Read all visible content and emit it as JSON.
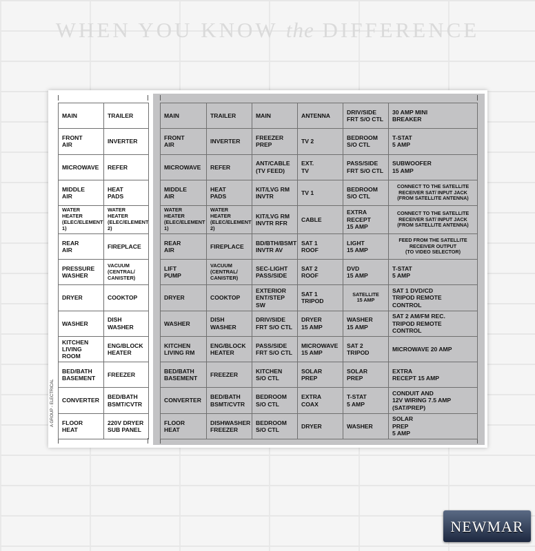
{
  "banner": {
    "line_a": "WHEN YOU KNOW",
    "line_the": "the",
    "line_b": "DIFFERENCE"
  },
  "side_label": "A GROUP - ELECTRICAL",
  "brand": "NEWMAR",
  "left_table": [
    [
      "MAIN",
      "TRAILER"
    ],
    [
      "FRONT\nAIR",
      "INVERTER"
    ],
    [
      "MICROWAVE",
      "REFER"
    ],
    [
      "MIDDLE\nAIR",
      "HEAT\nPADS"
    ],
    [
      "WATER\nHEATER\n(ELEC/ELEMENT 1)",
      "WATER\nHEATER\n(ELEC/ELEMENT 2)"
    ],
    [
      "REAR\nAIR",
      "FIREPLACE"
    ],
    [
      "PRESSURE\nWASHER",
      "VACUUM\n(CENTRAL/\nCANISTER)"
    ],
    [
      "DRYER",
      "COOKTOP"
    ],
    [
      "WASHER",
      "DISH\nWASHER"
    ],
    [
      "KITCHEN\nLIVING ROOM",
      "ENG/BLOCK\nHEATER"
    ],
    [
      "BED/BATH\nBASEMENT",
      "FREEZER"
    ],
    [
      "CONVERTER",
      "BED/BATH\nBSMT/CVTR"
    ],
    [
      "FLOOR\nHEAT",
      "220V DRYER\nSUB PANEL"
    ]
  ],
  "right_table": [
    [
      "MAIN",
      "TRAILER",
      "MAIN",
      "ANTENNA",
      "DRIV/SIDE\nFRT S/O CTL",
      "30 AMP          MINI\n                       BREAKER"
    ],
    [
      "FRONT\nAIR",
      "INVERTER",
      "FREEZER\nPREP",
      "TV 2",
      "BEDROOM\nS/O CTL",
      "T-STAT\n5 AMP"
    ],
    [
      "MICROWAVE",
      "REFER",
      "ANT/CABLE\n(TV FEED)",
      "EXT.\nTV",
      "PASS/SIDE\nFRT S/O CTL",
      "SUBWOOFER\n15 AMP"
    ],
    [
      "MIDDLE\nAIR",
      "HEAT\nPADS",
      "KIT/LVG RM\nINVTR",
      "TV 1",
      "BEDROOM\nS/O CTL",
      "CONNECT TO THE SATELLITE\nRECEIVER SAT/ INPUT JACK\n(FROM SATELLITE ANTENNA)"
    ],
    [
      "WATER\nHEATER\n(ELEC/ELEMENT 1)",
      "WATER\nHEATER\n(ELEC/ELEMENT 2)",
      "KIT/LVG RM\nINVTR RFR",
      "CABLE",
      "EXTRA RECEPT\n15 AMP",
      "CONNECT TO THE SATELLITE\nRECEIVER SAT/ INPUT JACK\n(FROM SATELLITE ANTENNA)"
    ],
    [
      "REAR\nAIR",
      "FIREPLACE",
      "BD/BTH/BSMT\nINVTR AV",
      "SAT 1\nROOF",
      "LIGHT\n15 AMP",
      "FEED FROM THE SATELLITE\nRECEIVER OUTPUT\n(TO VIDEO SELECTOR)"
    ],
    [
      "LIFT\nPUMP",
      "VACUUM\n(CENTRAL/\nCANISTER)",
      "SEC-LIGHT\nPASS/SIDE",
      "SAT 2\nROOF",
      "DVD\n15 AMP",
      "T-STAT\n5 AMP"
    ],
    [
      "DRYER",
      "COOKTOP",
      "EXTERIOR\nENT/STEP SW",
      "SAT 1\nTRIPOD",
      "SATELLITE\n15 AMP",
      "SAT 1                DVD/CD\nTRIPOD           REMOTE\n                        CONTROL"
    ],
    [
      "WASHER",
      "DISH\nWASHER",
      "DRIV/SIDE\nFRT S/O CTL",
      "DRYER\n15 AMP",
      "WASHER\n15 AMP",
      "SAT 2            AM/FM REC.\nTRIPOD           REMOTE\n                        CONTROL"
    ],
    [
      "KITCHEN\nLIVING RM",
      "ENG/BLOCK\nHEATER",
      "PASS/SIDE\nFRT S/O CTL",
      "MICROWAVE\n15 AMP",
      "SAT 2\nTRIPOD",
      "MICROWAVE          20 AMP"
    ],
    [
      "BED/BATH\nBASEMENT",
      "FREEZER",
      "KITCHEN\nS/O CTL",
      "SOLAR\nPREP",
      "SOLAR\nPREP",
      "EXTRA\nRECEPT                15 AMP"
    ],
    [
      "CONVERTER",
      "BED/BATH\nBSMT/CVTR",
      "BEDROOM\nS/O CTL",
      "EXTRA\nCOAX",
      "T-STAT\n5 AMP",
      "CONDUIT AND\n12V WIRING        7.5 AMP\n(SAT/PREP)"
    ],
    [
      "FLOOR\nHEAT",
      "DISHWASHER\nFREEZER",
      "BEDROOM\nS/O CTL",
      "DRYER",
      "WASHER",
      "SOLAR\nPREP\n5 AMP"
    ]
  ]
}
